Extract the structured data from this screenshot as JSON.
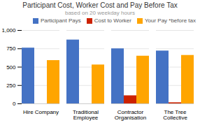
{
  "chart_data": {
    "type": "bar",
    "title": "Participant Cost, Worker Cost and Pay Before Tax",
    "subtitle": "based on 20 weekday hours",
    "categories": [
      "Hire Company",
      "Traditional\nEmployee",
      "Contractor\nOrganisation",
      "The Tree\nCollective"
    ],
    "series": [
      {
        "name": "Participant Pays",
        "color": "#4472C4",
        "values": [
          760,
          870,
          750,
          720
        ]
      },
      {
        "name": "Cost to Worker",
        "color": "#CC2200",
        "values": [
          0,
          0,
          110,
          15
        ]
      },
      {
        "name": "Your Pay *before tax",
        "color": "#FFA500",
        "values": [
          590,
          530,
          650,
          660
        ]
      }
    ],
    "ylim": [
      0,
      1000
    ],
    "yticks": [
      0,
      250,
      500,
      750,
      1000
    ],
    "grid": true,
    "legend": "upper right"
  }
}
